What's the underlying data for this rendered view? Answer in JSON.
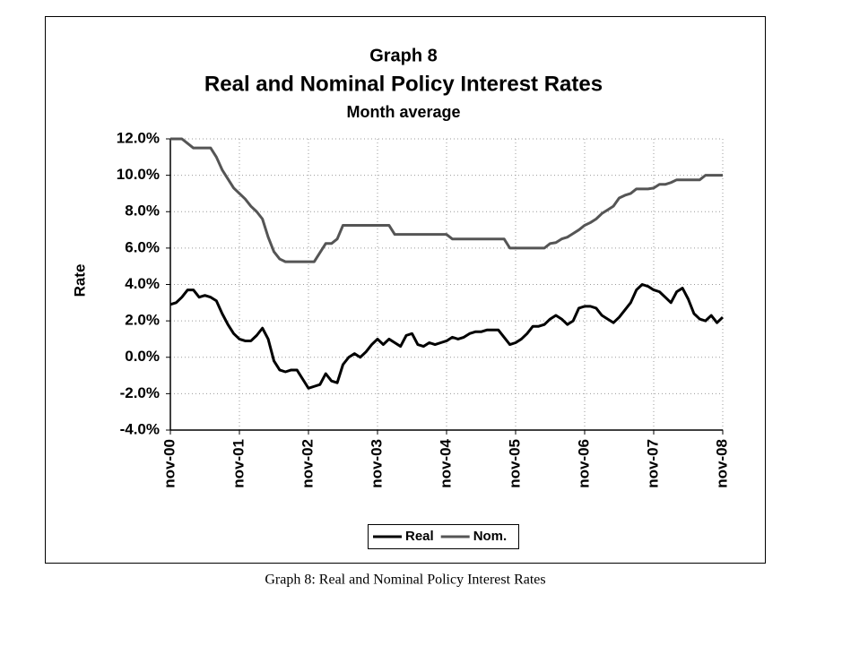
{
  "chart_data": {
    "type": "line",
    "title": "Graph 8",
    "subtitle": "Real and Nominal Policy Interest Rates",
    "note": "Month average",
    "y_label": "Rate",
    "categories": [
      "nov-00",
      null,
      null,
      null,
      null,
      null,
      null,
      null,
      null,
      null,
      null,
      null,
      "nov-01",
      null,
      null,
      null,
      null,
      null,
      null,
      null,
      null,
      null,
      null,
      null,
      "nov-02",
      null,
      null,
      null,
      null,
      null,
      null,
      null,
      null,
      null,
      null,
      null,
      "nov-03",
      null,
      null,
      null,
      null,
      null,
      null,
      null,
      null,
      null,
      null,
      null,
      "nov-04",
      null,
      null,
      null,
      null,
      null,
      null,
      null,
      null,
      null,
      null,
      null,
      "nov-05",
      null,
      null,
      null,
      null,
      null,
      null,
      null,
      null,
      null,
      null,
      null,
      "nov-06",
      null,
      null,
      null,
      null,
      null,
      null,
      null,
      null,
      null,
      null,
      null,
      "nov-07",
      null,
      null,
      null,
      null,
      null,
      null,
      null,
      null,
      null,
      null,
      null,
      "nov-08"
    ],
    "series": [
      {
        "name": "Real",
        "color": "#000000",
        "values": [
          2.9,
          3.0,
          3.3,
          3.7,
          3.7,
          3.3,
          3.4,
          3.3,
          3.1,
          2.4,
          1.8,
          1.3,
          1.0,
          0.9,
          0.9,
          1.2,
          1.6,
          1.0,
          -0.2,
          -0.7,
          -0.8,
          -0.7,
          -0.7,
          -1.2,
          -1.7,
          -1.6,
          -1.5,
          -0.9,
          -1.3,
          -1.4,
          -0.4,
          0.0,
          0.2,
          0.0,
          0.3,
          0.7,
          1.0,
          0.7,
          1.0,
          0.8,
          0.6,
          1.2,
          1.3,
          0.7,
          0.6,
          0.8,
          0.7,
          0.8,
          0.9,
          1.1,
          1.0,
          1.1,
          1.3,
          1.4,
          1.4,
          1.5,
          1.5,
          1.5,
          1.1,
          0.7,
          0.8,
          1.0,
          1.3,
          1.7,
          1.7,
          1.8,
          2.1,
          2.3,
          2.1,
          1.8,
          2.0,
          2.7,
          2.8,
          2.8,
          2.7,
          2.3,
          2.1,
          1.9,
          2.2,
          2.6,
          3.0,
          3.7,
          4.0,
          3.9,
          3.7,
          3.6,
          3.3,
          3.0,
          3.6,
          3.8,
          3.2,
          2.4,
          2.1,
          2.0,
          2.3,
          1.9,
          2.2
        ]
      },
      {
        "name": "Nom.",
        "color": "#555555",
        "values": [
          12.0,
          12.0,
          12.0,
          11.75,
          11.5,
          11.5,
          11.5,
          11.5,
          11.0,
          10.3,
          9.8,
          9.3,
          9.0,
          8.7,
          8.3,
          8.0,
          7.6,
          6.6,
          5.8,
          5.4,
          5.25,
          5.25,
          5.25,
          5.25,
          5.25,
          5.25,
          5.75,
          6.25,
          6.25,
          6.5,
          7.25,
          7.25,
          7.25,
          7.25,
          7.25,
          7.25,
          7.25,
          7.25,
          7.25,
          6.75,
          6.75,
          6.75,
          6.75,
          6.75,
          6.75,
          6.75,
          6.75,
          6.75,
          6.75,
          6.5,
          6.5,
          6.5,
          6.5,
          6.5,
          6.5,
          6.5,
          6.5,
          6.5,
          6.5,
          6.0,
          6.0,
          6.0,
          6.0,
          6.0,
          6.0,
          6.0,
          6.25,
          6.3,
          6.5,
          6.6,
          6.8,
          7.0,
          7.25,
          7.4,
          7.6,
          7.9,
          8.1,
          8.3,
          8.75,
          8.9,
          9.0,
          9.25,
          9.25,
          9.25,
          9.3,
          9.5,
          9.5,
          9.6,
          9.75,
          9.75,
          9.75,
          9.75,
          9.75,
          10.0,
          10.0,
          10.0,
          10.0
        ]
      }
    ],
    "ylim": [
      -4,
      12
    ],
    "yticks": [
      {
        "value": -4,
        "label": "-4.0%"
      },
      {
        "value": -2,
        "label": "-2.0%"
      },
      {
        "value": 0,
        "label": "0.0%"
      },
      {
        "value": 2,
        "label": "2.0%"
      },
      {
        "value": 4,
        "label": "4.0%"
      },
      {
        "value": 6,
        "label": "6.0%"
      },
      {
        "value": 8,
        "label": "8.0%"
      },
      {
        "value": 10,
        "label": "10.0%"
      },
      {
        "value": 12,
        "label": "12.0%"
      }
    ],
    "grid": true,
    "legend": "bottom"
  },
  "caption": "Graph 8: Real and Nominal Policy Interest Rates"
}
